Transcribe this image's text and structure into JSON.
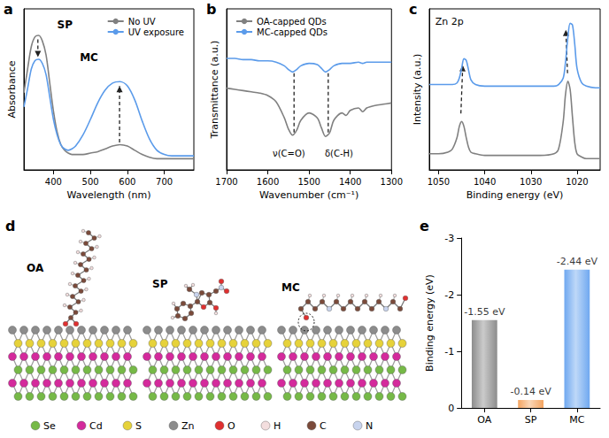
{
  "chart_data": [
    {
      "panel_label": "a",
      "type": "line",
      "xlabel": "Wavelength (nm)",
      "ylabel": "Absorbance",
      "x": [
        320,
        330,
        340,
        350,
        360,
        370,
        380,
        390,
        400,
        410,
        420,
        430,
        440,
        450,
        460,
        480,
        500,
        520,
        540,
        560,
        580,
        600,
        620,
        640,
        660,
        680,
        700,
        720,
        740,
        760,
        780
      ],
      "series": [
        {
          "name": "No UV",
          "color": "#808080",
          "values": [
            0.55,
            0.72,
            0.88,
            0.95,
            0.96,
            0.92,
            0.82,
            0.62,
            0.42,
            0.27,
            0.18,
            0.14,
            0.12,
            0.11,
            0.11,
            0.11,
            0.12,
            0.13,
            0.15,
            0.17,
            0.18,
            0.17,
            0.14,
            0.11,
            0.09,
            0.08,
            0.08,
            0.08,
            0.08,
            0.08,
            0.08
          ]
        },
        {
          "name": "UV exposure",
          "color": "#5b9bea",
          "values": [
            0.45,
            0.58,
            0.72,
            0.78,
            0.79,
            0.76,
            0.68,
            0.52,
            0.36,
            0.25,
            0.18,
            0.15,
            0.14,
            0.15,
            0.17,
            0.25,
            0.36,
            0.48,
            0.57,
            0.62,
            0.63,
            0.6,
            0.5,
            0.35,
            0.22,
            0.14,
            0.11,
            0.1,
            0.1,
            0.1,
            0.1
          ]
        }
      ],
      "xlim": [
        320,
        780
      ],
      "xticks": [
        400,
        500,
        600,
        700
      ],
      "ylim": [
        0,
        1.15
      ],
      "tick_labels": "x",
      "legend": "upper right",
      "grid": false,
      "annotations": [
        "SP",
        "MC"
      ]
    },
    {
      "panel_label": "b",
      "type": "line",
      "xlabel": "Wavenumber (cm⁻¹)",
      "ylabel": "Transmittance (a.u.)",
      "x": [
        1700,
        1680,
        1660,
        1640,
        1620,
        1600,
        1580,
        1560,
        1550,
        1540,
        1530,
        1520,
        1500,
        1480,
        1470,
        1460,
        1450,
        1440,
        1420,
        1410,
        1400,
        1380,
        1370,
        1360,
        1340,
        1320,
        1300
      ],
      "series": [
        {
          "name": "OA-capped QDs",
          "color": "#808080",
          "values": [
            0.66,
            0.65,
            0.64,
            0.63,
            0.62,
            0.6,
            0.55,
            0.42,
            0.33,
            0.28,
            0.32,
            0.4,
            0.46,
            0.42,
            0.34,
            0.27,
            0.3,
            0.4,
            0.46,
            0.44,
            0.48,
            0.5,
            0.47,
            0.5,
            0.52,
            0.53,
            0.54
          ]
        },
        {
          "name": "MC-capped QDs",
          "color": "#5b9bea",
          "values": [
            0.9,
            0.9,
            0.89,
            0.89,
            0.88,
            0.88,
            0.87,
            0.84,
            0.81,
            0.79,
            0.81,
            0.84,
            0.86,
            0.85,
            0.82,
            0.79,
            0.81,
            0.84,
            0.86,
            0.86,
            0.86,
            0.87,
            0.86,
            0.87,
            0.87,
            0.87,
            0.87
          ]
        }
      ],
      "xlim": [
        1700,
        1300
      ],
      "xticks": [
        1700,
        1600,
        1500,
        1400,
        1300
      ],
      "ylim": [
        0,
        1.3
      ],
      "tick_labels": "x",
      "legend": "upper left",
      "grid": false,
      "annotations": [
        "ν(C=O)",
        "δ(C-H)"
      ]
    },
    {
      "panel_label": "c",
      "type": "line",
      "title": "Zn 2p",
      "xlabel": "Binding energy (eV)",
      "ylabel": "Intensity (a.u.)",
      "x": [
        1052,
        1050,
        1048,
        1047,
        1046,
        1045.5,
        1045,
        1044.5,
        1044,
        1043.5,
        1043,
        1042,
        1040,
        1036,
        1032,
        1028,
        1025,
        1024,
        1023,
        1022.5,
        1022,
        1021.5,
        1021,
        1020.5,
        1020,
        1019,
        1018,
        1016,
        1015
      ],
      "series": [
        {
          "color": "#808080",
          "values": [
            0.1,
            0.1,
            0.11,
            0.13,
            0.2,
            0.27,
            0.3,
            0.27,
            0.2,
            0.14,
            0.11,
            0.1,
            0.09,
            0.09,
            0.09,
            0.09,
            0.1,
            0.13,
            0.3,
            0.47,
            0.55,
            0.5,
            0.33,
            0.17,
            0.1,
            0.08,
            0.07,
            0.07,
            0.07
          ]
        },
        {
          "color": "#5b9bea",
          "values": [
            0.53,
            0.53,
            0.53,
            0.53,
            0.54,
            0.57,
            0.63,
            0.69,
            0.68,
            0.62,
            0.56,
            0.53,
            0.52,
            0.52,
            0.52,
            0.52,
            0.52,
            0.53,
            0.57,
            0.67,
            0.82,
            0.91,
            0.9,
            0.78,
            0.63,
            0.54,
            0.52,
            0.51,
            0.51
          ]
        }
      ],
      "xlim": [
        1052,
        1015
      ],
      "xticks": [
        1050,
        1040,
        1030,
        1020
      ],
      "ylim": [
        0,
        1
      ],
      "tick_labels": "x",
      "grid": false
    },
    {
      "panel_label": "e",
      "type": "bar",
      "ylabel": "Binding energy (eV)",
      "categories": [
        "OA",
        "SP",
        "MC"
      ],
      "values": [
        -1.55,
        -0.14,
        -2.44
      ],
      "value_labels": [
        "-1.55 eV",
        "-0.14 eV",
        "-2.44 eV"
      ],
      "data_labels": true,
      "colors": [
        "#8c8c8c",
        "#f4a460",
        "#6fa8f0"
      ],
      "ylim": [
        0,
        -3
      ],
      "yticks": [
        0,
        -1,
        -2,
        -3
      ],
      "grid": false
    }
  ],
  "diagram": {
    "panel_label": "d",
    "molecules": [
      "OA",
      "SP",
      "MC"
    ],
    "elements": [
      {
        "symbol": "Se",
        "color": "#76b947"
      },
      {
        "symbol": "Cd",
        "color": "#d42a9c"
      },
      {
        "symbol": "S",
        "color": "#e6d23a"
      },
      {
        "symbol": "Zn",
        "color": "#8c8c8c"
      },
      {
        "symbol": "O",
        "color": "#e03030"
      },
      {
        "symbol": "H",
        "color": "#f3dede"
      },
      {
        "symbol": "C",
        "color": "#7a4a3a"
      },
      {
        "symbol": "N",
        "color": "#c8d4ee"
      }
    ]
  }
}
